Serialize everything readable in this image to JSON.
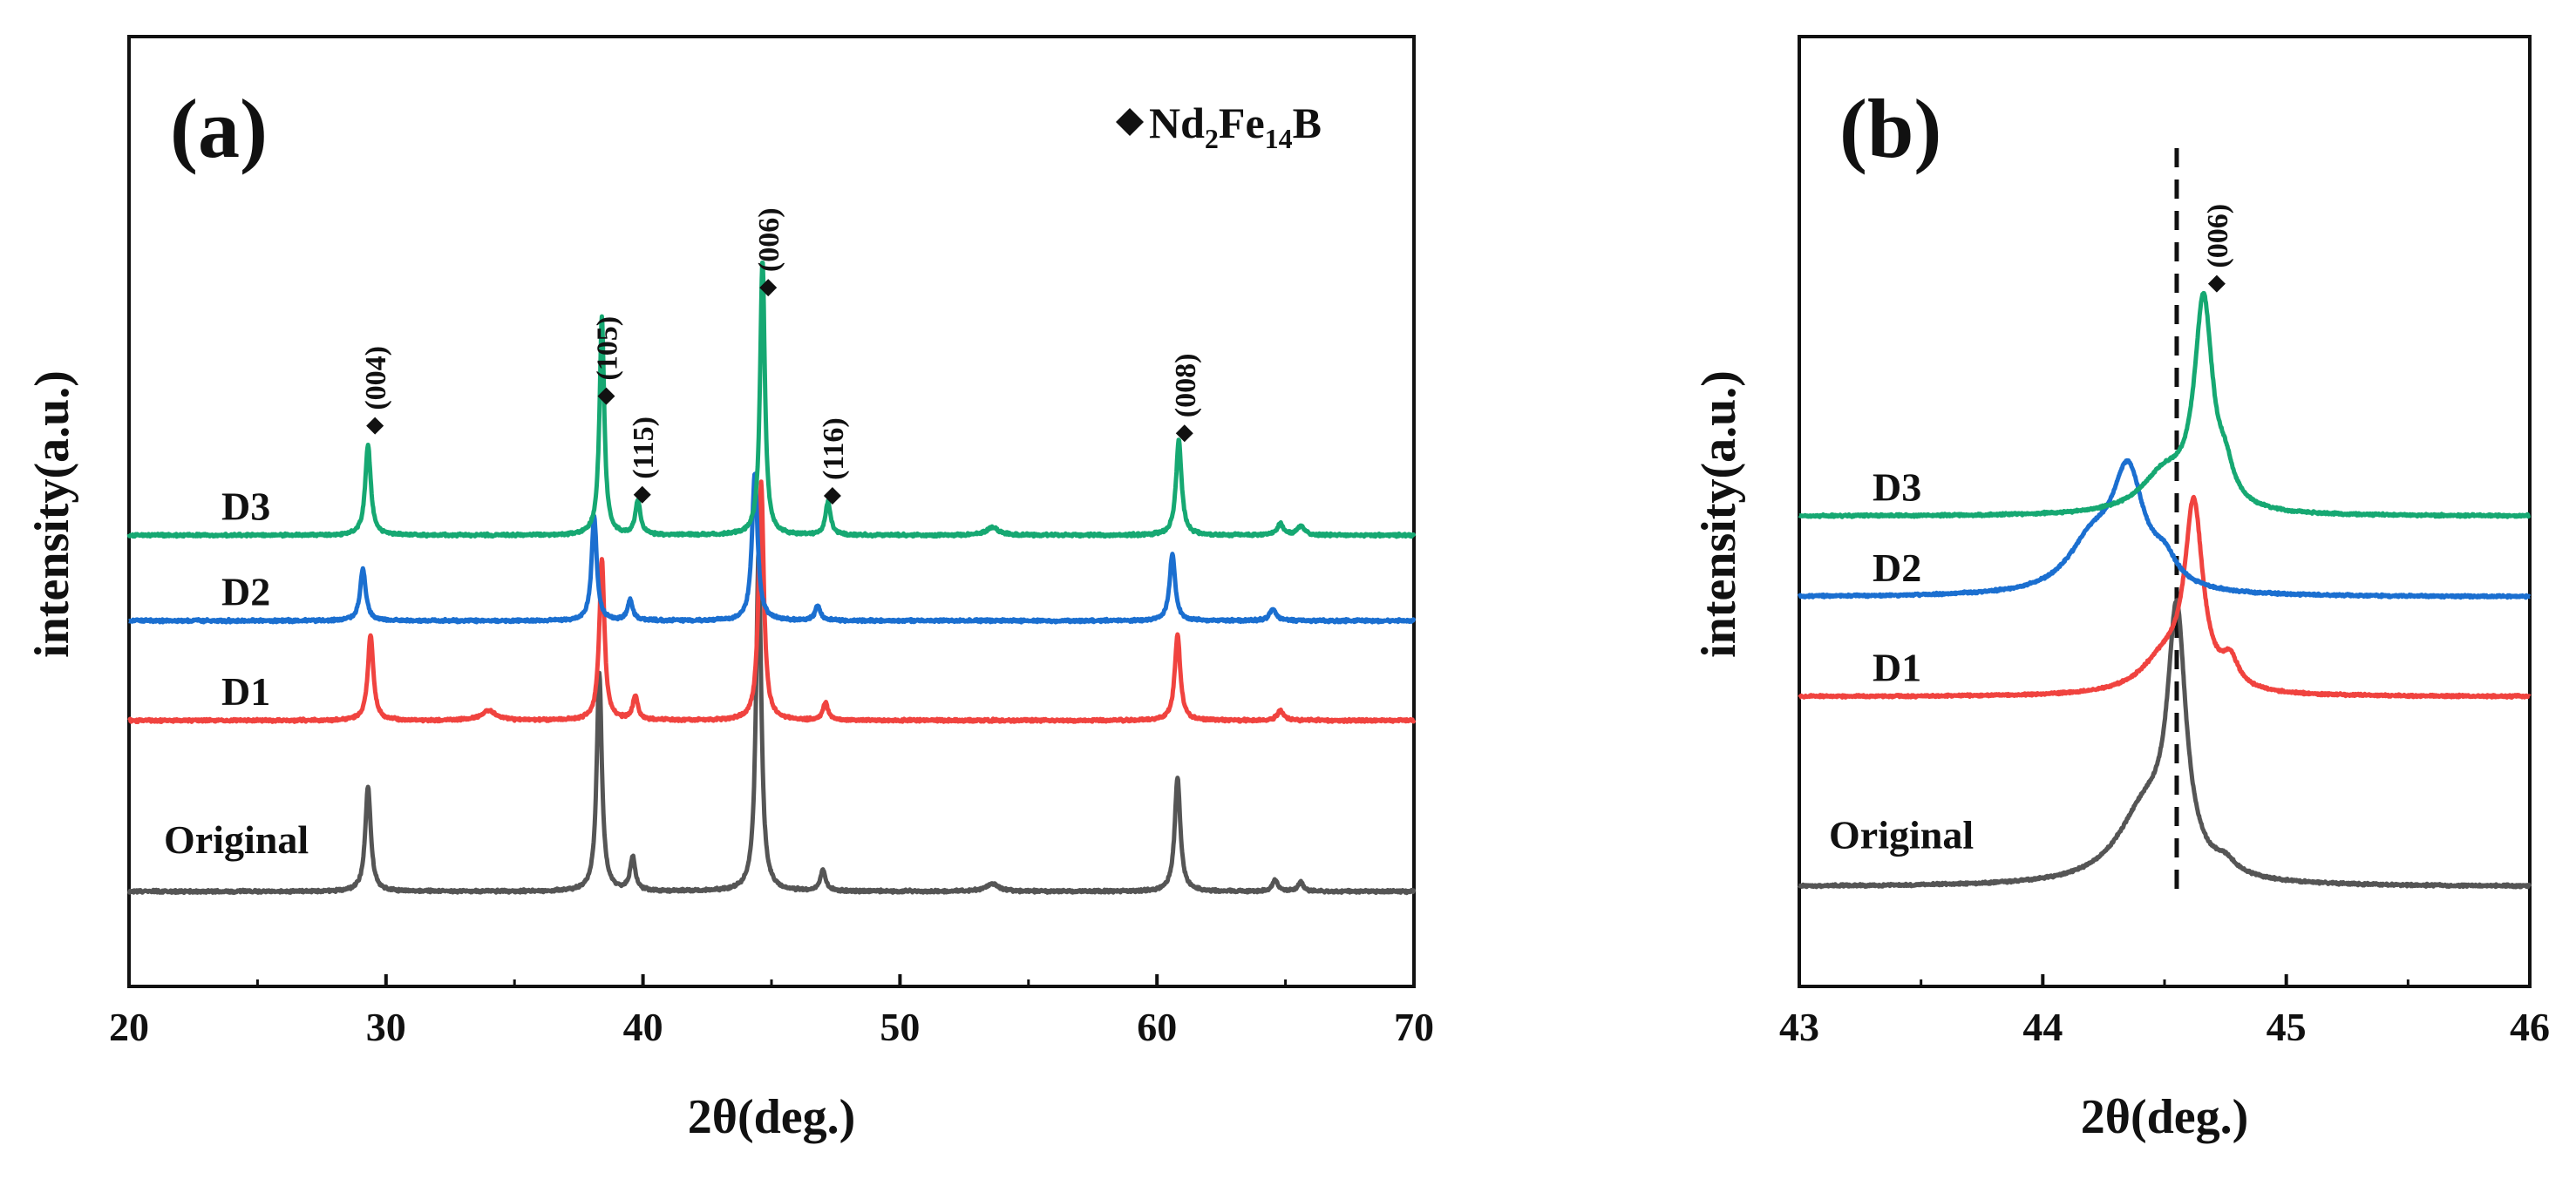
{
  "chart_data": [
    {
      "panel": "(a)",
      "type": "line",
      "xlabel": "2θ(deg.)",
      "ylabel": "intensity(a.u.)",
      "xlim": [
        20,
        70
      ],
      "ylim": [
        0,
        10
      ],
      "xticks": [
        20,
        30,
        40,
        50,
        60,
        70
      ],
      "legend": {
        "marker": "diamond",
        "text": "Nd2Fe14B",
        "position": "top-right"
      },
      "peaks": [
        {
          "x": 29.3,
          "label": "(004)"
        },
        {
          "x": 38.3,
          "label": "(105)"
        },
        {
          "x": 39.7,
          "label": "(115)"
        },
        {
          "x": 44.6,
          "label": "(006)"
        },
        {
          "x": 47.1,
          "label": "(116)"
        },
        {
          "x": 60.8,
          "label": "(008)"
        }
      ],
      "series": [
        {
          "name": "Original",
          "color": "#555555",
          "baseline": 1.0,
          "peaks": [
            [
              29.3,
              1.1,
              0.13
            ],
            [
              38.3,
              2.3,
              0.12
            ],
            [
              39.6,
              0.35,
              0.12
            ],
            [
              44.5,
              3.6,
              0.12
            ],
            [
              47.0,
              0.22,
              0.12
            ],
            [
              53.6,
              0.08,
              0.3
            ],
            [
              60.8,
              1.2,
              0.13
            ],
            [
              64.6,
              0.12,
              0.12
            ],
            [
              65.6,
              0.1,
              0.12
            ]
          ]
        },
        {
          "name": "D1",
          "color": "#f0433f",
          "baseline": 2.8,
          "peaks": [
            [
              29.4,
              0.9,
              0.13
            ],
            [
              34.0,
              0.1,
              0.35
            ],
            [
              38.4,
              1.7,
              0.12
            ],
            [
              39.7,
              0.25,
              0.12
            ],
            [
              44.6,
              2.5,
              0.12
            ],
            [
              47.1,
              0.18,
              0.12
            ],
            [
              60.8,
              0.9,
              0.13
            ],
            [
              64.8,
              0.1,
              0.15
            ]
          ]
        },
        {
          "name": "D2",
          "color": "#1b6fd0",
          "baseline": 3.85,
          "peaks": [
            [
              29.1,
              0.55,
              0.13
            ],
            [
              38.1,
              1.1,
              0.12
            ],
            [
              39.5,
              0.22,
              0.12
            ],
            [
              44.35,
              1.55,
              0.13
            ],
            [
              46.8,
              0.16,
              0.12
            ],
            [
              60.6,
              0.7,
              0.13
            ],
            [
              64.5,
              0.12,
              0.15
            ]
          ]
        },
        {
          "name": "D3",
          "color": "#16a872",
          "baseline": 4.75,
          "peaks": [
            [
              29.3,
              0.95,
              0.13
            ],
            [
              38.4,
              2.3,
              0.11
            ],
            [
              39.8,
              0.35,
              0.12
            ],
            [
              44.65,
              2.9,
              0.11
            ],
            [
              47.2,
              0.35,
              0.12
            ],
            [
              53.6,
              0.08,
              0.3
            ],
            [
              60.85,
              1.0,
              0.13
            ],
            [
              64.8,
              0.12,
              0.15
            ],
            [
              65.6,
              0.1,
              0.15
            ]
          ]
        }
      ]
    },
    {
      "panel": "(b)",
      "type": "line",
      "xlabel": "2θ(deg.)",
      "ylabel": "intensity(a.u.)",
      "xlim": [
        43,
        46
      ],
      "ylim": [
        0,
        10
      ],
      "xticks": [
        43,
        44,
        45,
        46
      ],
      "reference_line_x": 44.55,
      "peak_label": {
        "x": 44.65,
        "label": "(006)"
      },
      "series": [
        {
          "name": "Original",
          "color": "#555555",
          "baseline": 1.05,
          "peaks": [
            [
              44.55,
              2.6,
              0.045
            ],
            [
              44.42,
              0.75,
              0.14
            ],
            [
              44.75,
              0.12,
              0.05
            ]
          ]
        },
        {
          "name": "D1",
          "color": "#f0433f",
          "baseline": 3.05,
          "peaks": [
            [
              44.62,
              1.9,
              0.045
            ],
            [
              44.5,
              0.35,
              0.12
            ],
            [
              44.77,
              0.28,
              0.04
            ]
          ]
        },
        {
          "name": "D2",
          "color": "#1b6fd0",
          "baseline": 4.1,
          "peaks": [
            [
              44.35,
              1.2,
              0.08
            ],
            [
              44.2,
              0.5,
              0.12
            ],
            [
              44.5,
              0.25,
              0.06
            ]
          ]
        },
        {
          "name": "D3",
          "color": "#16a872",
          "baseline": 4.95,
          "peaks": [
            [
              44.66,
              2.15,
              0.045
            ],
            [
              44.5,
              0.4,
              0.12
            ],
            [
              44.75,
              0.3,
              0.04
            ]
          ]
        }
      ]
    }
  ]
}
